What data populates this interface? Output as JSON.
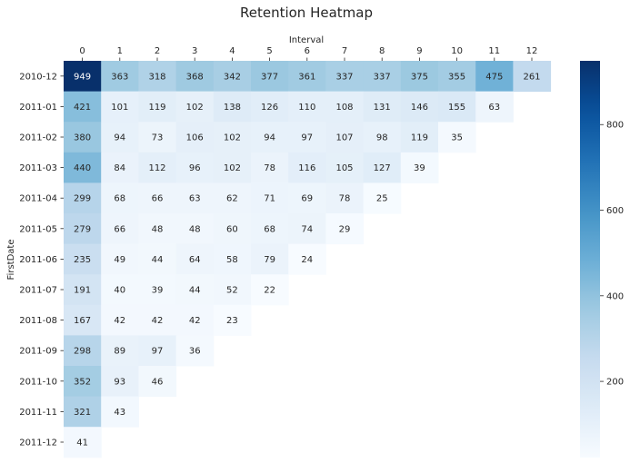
{
  "chart_data": {
    "type": "heatmap",
    "title": "Retention Heatmap",
    "xlabel": "Interval",
    "ylabel": "FirstDate",
    "x_ticks": [
      "0",
      "1",
      "2",
      "3",
      "4",
      "5",
      "6",
      "7",
      "8",
      "9",
      "10",
      "11",
      "12"
    ],
    "y_ticks": [
      "2010-12",
      "2011-01",
      "2011-02",
      "2011-03",
      "2011-04",
      "2011-05",
      "2011-06",
      "2011-07",
      "2011-08",
      "2011-09",
      "2011-10",
      "2011-11",
      "2011-12"
    ],
    "values": [
      [
        949,
        363,
        318,
        368,
        342,
        377,
        361,
        337,
        337,
        375,
        355,
        475,
        261
      ],
      [
        421,
        101,
        119,
        102,
        138,
        126,
        110,
        108,
        131,
        146,
        155,
        63,
        null
      ],
      [
        380,
        94,
        73,
        106,
        102,
        94,
        97,
        107,
        98,
        119,
        35,
        null,
        null
      ],
      [
        440,
        84,
        112,
        96,
        102,
        78,
        116,
        105,
        127,
        39,
        null,
        null,
        null
      ],
      [
        299,
        68,
        66,
        63,
        62,
        71,
        69,
        78,
        25,
        null,
        null,
        null,
        null
      ],
      [
        279,
        66,
        48,
        48,
        60,
        68,
        74,
        29,
        null,
        null,
        null,
        null,
        null
      ],
      [
        235,
        49,
        44,
        64,
        58,
        79,
        24,
        null,
        null,
        null,
        null,
        null,
        null
      ],
      [
        191,
        40,
        39,
        44,
        52,
        22,
        null,
        null,
        null,
        null,
        null,
        null,
        null
      ],
      [
        167,
        42,
        42,
        42,
        23,
        null,
        null,
        null,
        null,
        null,
        null,
        null,
        null
      ],
      [
        298,
        89,
        97,
        36,
        null,
        null,
        null,
        null,
        null,
        null,
        null,
        null,
        null
      ],
      [
        352,
        93,
        46,
        null,
        null,
        null,
        null,
        null,
        null,
        null,
        null,
        null,
        null
      ],
      [
        321,
        43,
        null,
        null,
        null,
        null,
        null,
        null,
        null,
        null,
        null,
        null,
        null
      ],
      [
        41,
        null,
        null,
        null,
        null,
        null,
        null,
        null,
        null,
        null,
        null,
        null,
        null
      ]
    ],
    "colormap": "Blues",
    "vmin": 22,
    "vmax": 949,
    "colorbar_ticks": [
      "200",
      "400",
      "600",
      "800"
    ],
    "x_axis_position": "top",
    "grid": false
  }
}
